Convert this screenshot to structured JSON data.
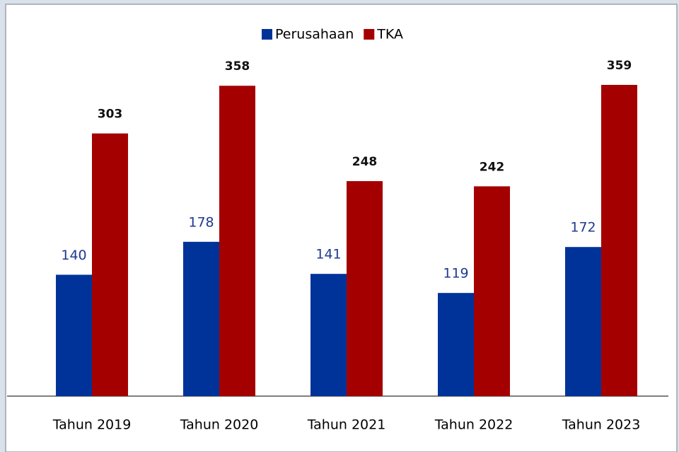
{
  "chart_data": {
    "type": "bar",
    "categories": [
      "Tahun 2019",
      "Tahun 2020",
      "Tahun 2021",
      "Tahun 2022",
      "Tahun 2023"
    ],
    "series": [
      {
        "name": "Perusahaan",
        "color": "#003399",
        "values": [
          140,
          178,
          141,
          119,
          172
        ]
      },
      {
        "name": "TKA",
        "color": "#a50000",
        "values": [
          303,
          358,
          248,
          242,
          359
        ]
      }
    ],
    "legend": "top"
  }
}
